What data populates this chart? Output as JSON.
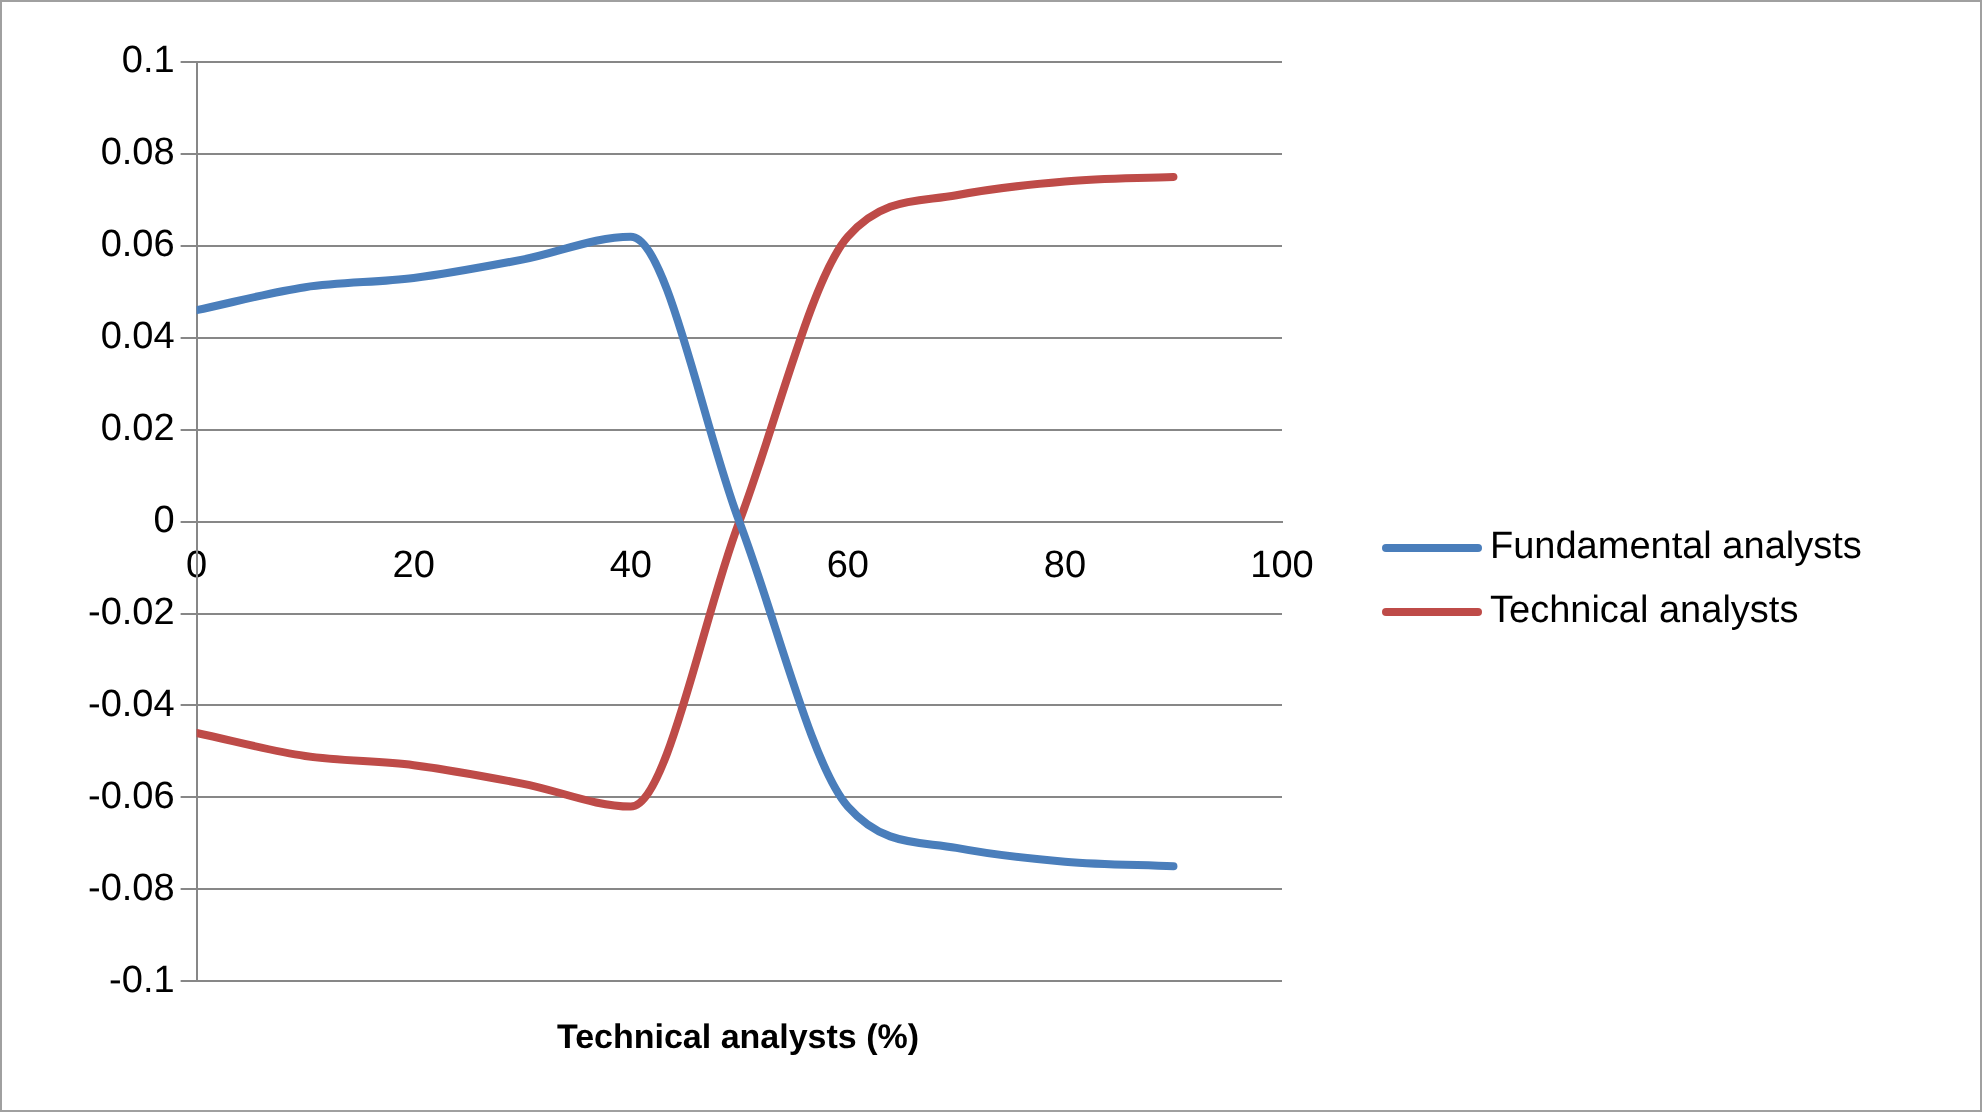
{
  "chart_data": {
    "type": "line",
    "xlabel": "Technical analysts (%)",
    "x": [
      0,
      10,
      20,
      30,
      40,
      50,
      60,
      70,
      80,
      90
    ],
    "series": [
      {
        "name": "Fundamental analysts",
        "color": "#4a7ebb",
        "values": [
          0.046,
          0.051,
          0.053,
          0.057,
          0.062,
          0,
          -0.062,
          -0.071,
          -0.074,
          -0.075
        ]
      },
      {
        "name": "Technical analysts",
        "color": "#be4b48",
        "values": [
          -0.046,
          -0.051,
          -0.053,
          -0.057,
          -0.062,
          0,
          0.062,
          0.071,
          0.074,
          0.075
        ]
      }
    ],
    "xlim": [
      0,
      100
    ],
    "xticks": [
      0,
      20,
      40,
      60,
      80,
      100
    ],
    "ylim": [
      -0.1,
      0.1
    ],
    "yticks": [
      -0.1,
      -0.08,
      -0.06,
      -0.04,
      -0.02,
      0,
      0.02,
      0.04,
      0.06,
      0.08,
      0.1
    ],
    "grid": "y",
    "legend": "right",
    "marker": "none",
    "line_style": "solid"
  }
}
